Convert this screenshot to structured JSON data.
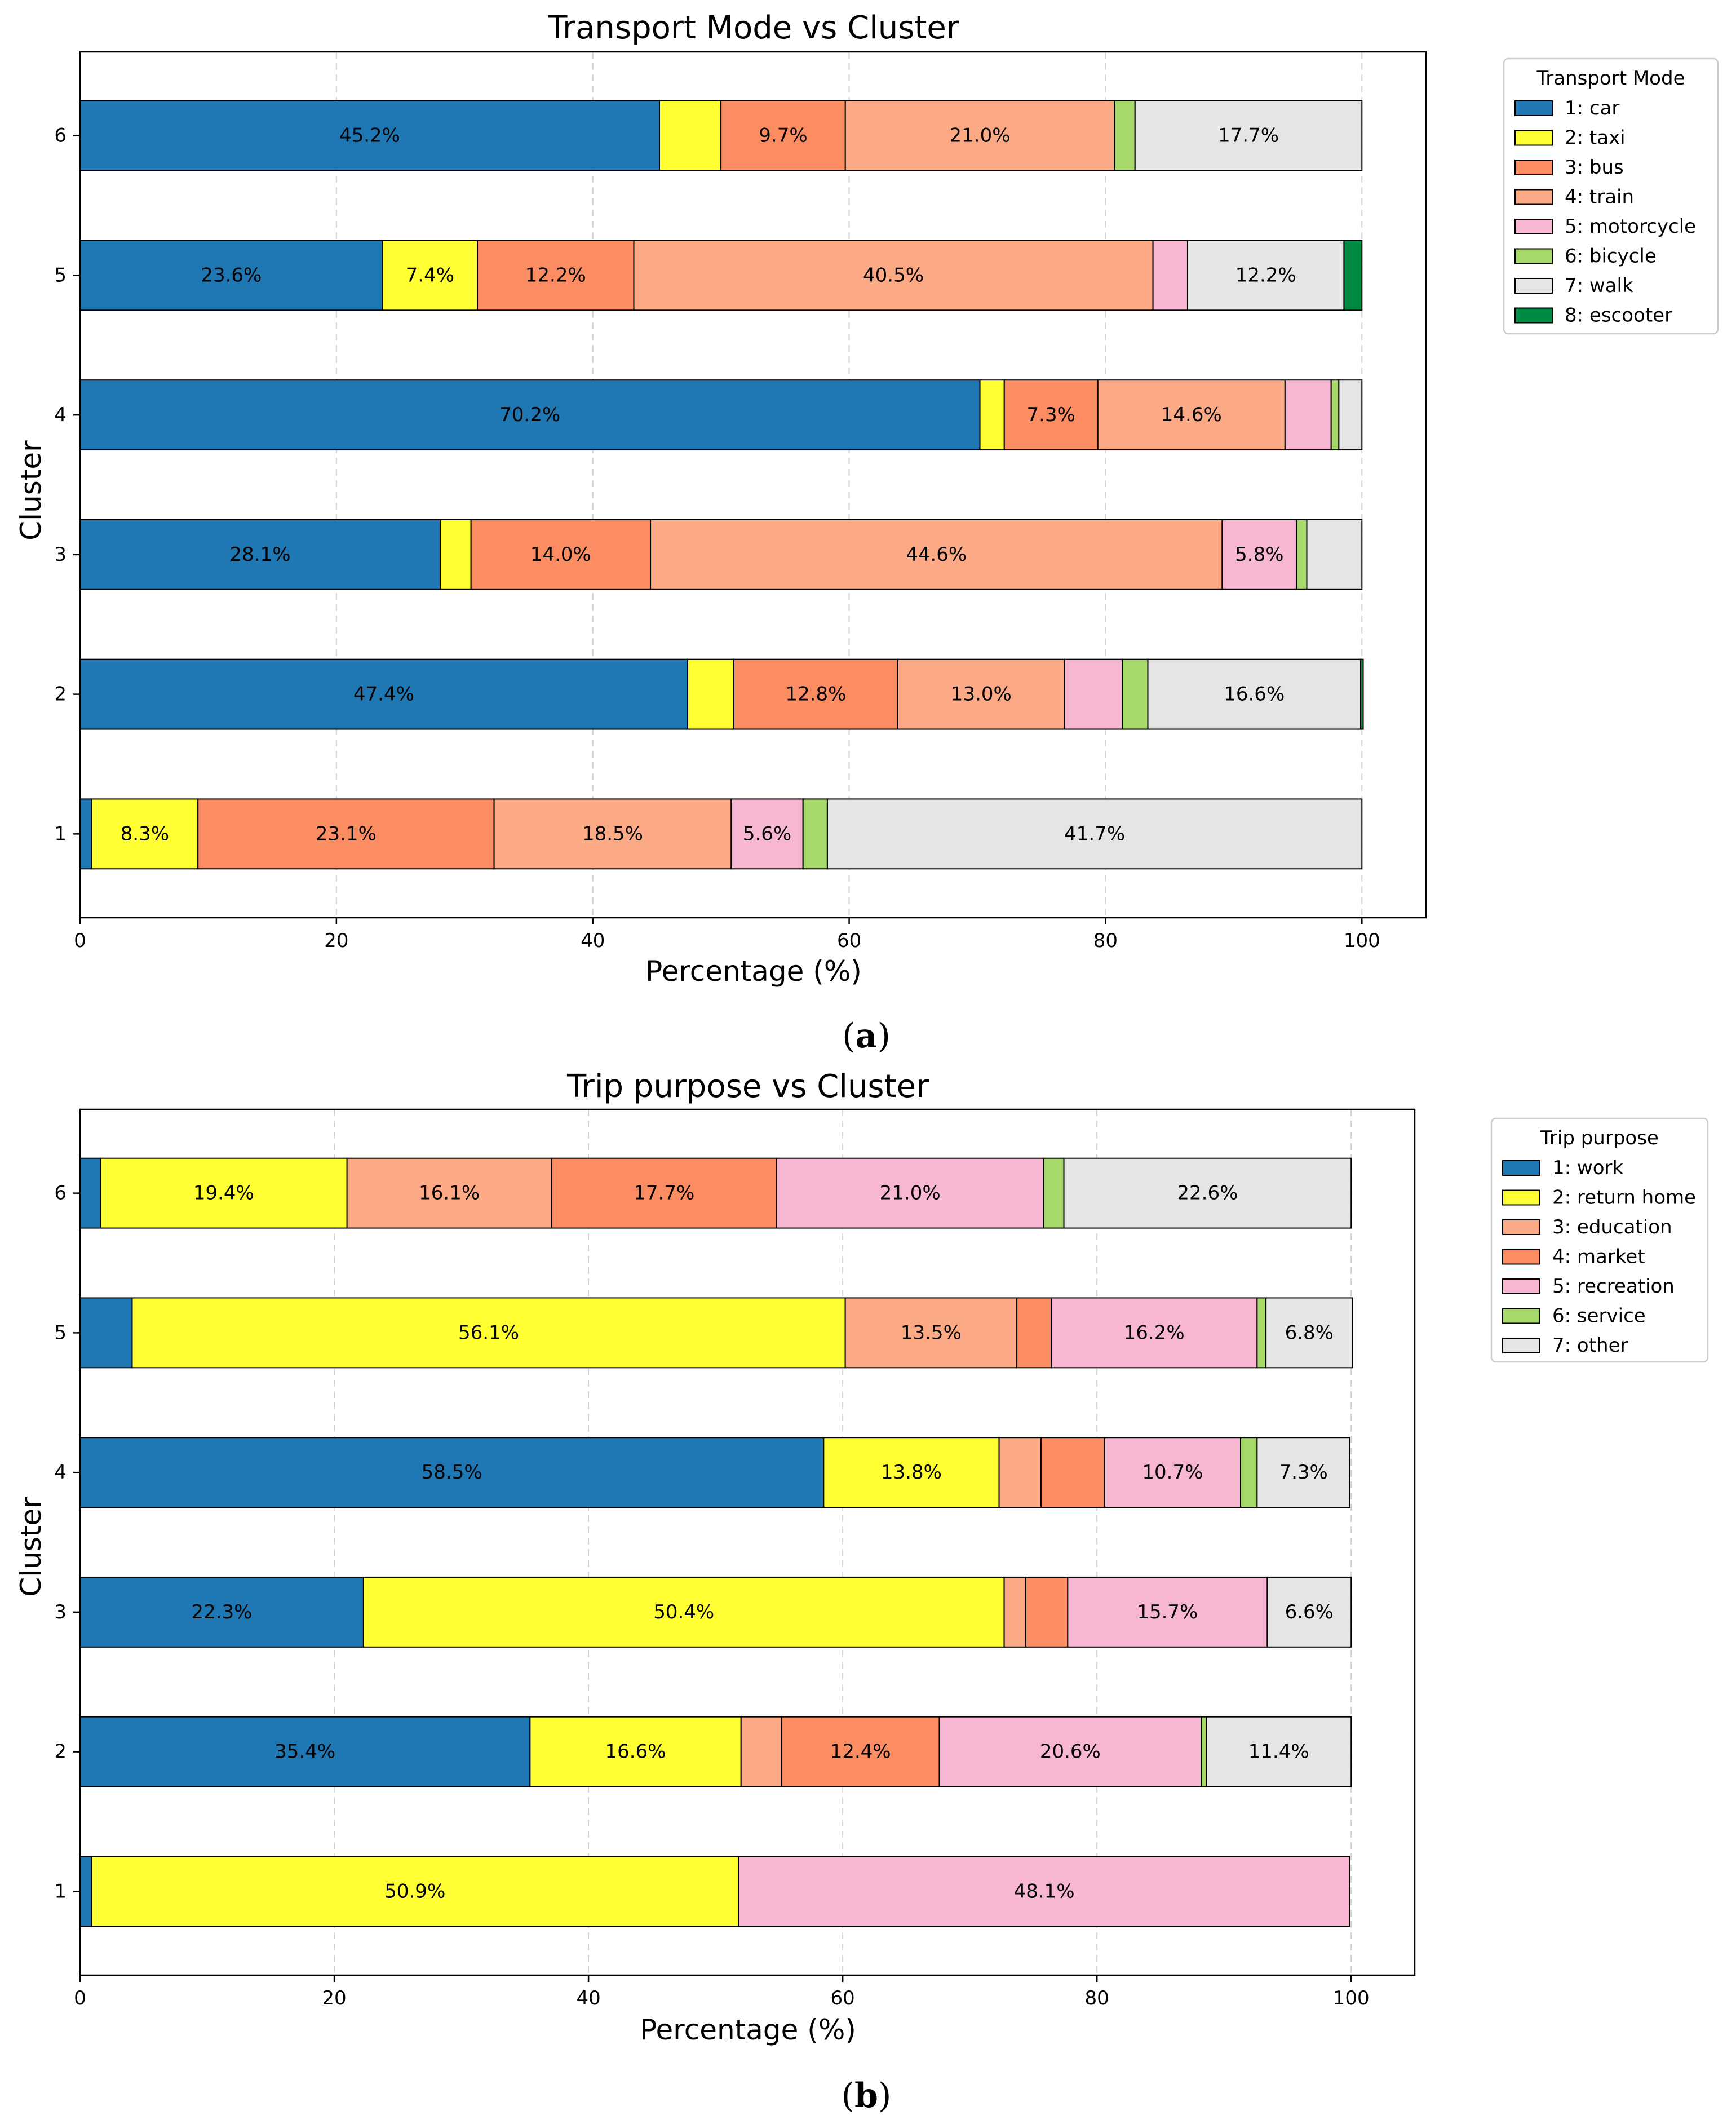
{
  "chart_data": [
    {
      "type": "bar",
      "orientation": "horizontal",
      "stacked": true,
      "title": "Transport Mode vs Cluster",
      "xlabel": "Percentage (%)",
      "ylabel": "Cluster",
      "xlim": [
        0,
        105
      ],
      "xticks": [
        0,
        20,
        40,
        60,
        80,
        100
      ],
      "grid": "x dashed",
      "panel_label": "a",
      "categories": [
        "1",
        "2",
        "3",
        "4",
        "5",
        "6"
      ],
      "legend": {
        "title": "Transport Mode",
        "placement": "outside upper right"
      },
      "series": [
        {
          "name": "1: car",
          "color": "#1f77b4",
          "values": [
            0.9,
            47.4,
            28.1,
            70.2,
            23.6,
            45.2
          ]
        },
        {
          "name": "2: taxi",
          "color": "#ffff33",
          "values": [
            8.3,
            3.6,
            2.4,
            1.9,
            7.4,
            4.8
          ]
        },
        {
          "name": "3: bus",
          "color": "#fc8d62",
          "values": [
            23.1,
            12.8,
            14.0,
            7.3,
            12.2,
            9.7
          ]
        },
        {
          "name": "4: train",
          "color": "#fcaa85",
          "values": [
            18.5,
            13.0,
            44.6,
            14.6,
            40.5,
            21.0
          ]
        },
        {
          "name": "5: motorcycle",
          "color": "#f7b6d2",
          "values": [
            5.6,
            4.5,
            5.8,
            3.6,
            2.7,
            0.0
          ]
        },
        {
          "name": "6: bicycle",
          "color": "#a6d96a",
          "values": [
            1.9,
            2.0,
            0.8,
            0.6,
            0.0,
            1.6
          ]
        },
        {
          "name": "7: walk",
          "color": "#e5e5e5",
          "values": [
            41.7,
            16.6,
            4.3,
            1.8,
            12.2,
            17.7
          ]
        },
        {
          "name": "8: escooter",
          "color": "#008b45",
          "values": [
            0.0,
            0.2,
            0.0,
            0.0,
            1.4,
            0.0
          ]
        }
      ],
      "labels": [
        [
          "",
          "8.3%",
          "23.1%",
          "18.5%",
          "5.6%",
          "",
          "41.7%",
          ""
        ],
        [
          "47.4%",
          "",
          "12.8%",
          "13.0%",
          "",
          "",
          "16.6%",
          ""
        ],
        [
          "28.1%",
          "",
          "14.0%",
          "44.6%",
          "5.8%",
          "",
          "",
          ""
        ],
        [
          "70.2%",
          "",
          "7.3%",
          "14.6%",
          "",
          "",
          "",
          ""
        ],
        [
          "23.6%",
          "7.4%",
          "12.2%",
          "40.5%",
          "",
          "",
          "12.2%",
          ""
        ],
        [
          "45.2%",
          "",
          "9.7%",
          "21.0%",
          "",
          "",
          "17.7%",
          ""
        ]
      ]
    },
    {
      "type": "bar",
      "orientation": "horizontal",
      "stacked": true,
      "title": "Trip purpose vs Cluster",
      "xlabel": "Percentage (%)",
      "ylabel": "Cluster",
      "xlim": [
        0,
        105
      ],
      "xticks": [
        0,
        20,
        40,
        60,
        80,
        100
      ],
      "grid": "x dashed",
      "panel_label": "b",
      "categories": [
        "1",
        "2",
        "3",
        "4",
        "5",
        "6"
      ],
      "legend": {
        "title": "Trip purpose",
        "placement": "outside upper right"
      },
      "series": [
        {
          "name": "1: work",
          "color": "#1f77b4",
          "values": [
            0.9,
            35.4,
            22.3,
            58.5,
            4.1,
            1.6
          ]
        },
        {
          "name": "2: return home",
          "color": "#ffff33",
          "values": [
            50.9,
            16.6,
            50.4,
            13.8,
            56.1,
            19.4
          ]
        },
        {
          "name": "3: education",
          "color": "#fcaa85",
          "values": [
            0.0,
            3.2,
            1.7,
            3.3,
            13.5,
            16.1
          ]
        },
        {
          "name": "4: market",
          "color": "#fc8d62",
          "values": [
            0.0,
            12.4,
            3.3,
            5.0,
            2.7,
            17.7
          ]
        },
        {
          "name": "5: recreation",
          "color": "#f7b6d2",
          "values": [
            48.1,
            20.6,
            15.7,
            10.7,
            16.2,
            21.0
          ]
        },
        {
          "name": "6: service",
          "color": "#a6d96a",
          "values": [
            0.0,
            0.4,
            0.0,
            1.3,
            0.7,
            1.6
          ]
        },
        {
          "name": "7: other",
          "color": "#e5e5e5",
          "values": [
            0.0,
            11.4,
            6.6,
            7.3,
            6.8,
            22.6
          ]
        }
      ],
      "labels": [
        [
          "",
          "50.9%",
          "",
          "",
          "48.1%",
          "",
          ""
        ],
        [
          "35.4%",
          "16.6%",
          "",
          "12.4%",
          "20.6%",
          "",
          "11.4%"
        ],
        [
          "22.3%",
          "50.4%",
          "",
          "",
          "15.7%",
          "",
          "6.6%"
        ],
        [
          "58.5%",
          "13.8%",
          "",
          "",
          "10.7%",
          "",
          "7.3%"
        ],
        [
          "",
          "56.1%",
          "13.5%",
          "",
          "16.2%",
          "",
          "6.8%"
        ],
        [
          "",
          "19.4%",
          "16.1%",
          "17.7%",
          "21.0%",
          "",
          "22.6%"
        ]
      ]
    }
  ]
}
